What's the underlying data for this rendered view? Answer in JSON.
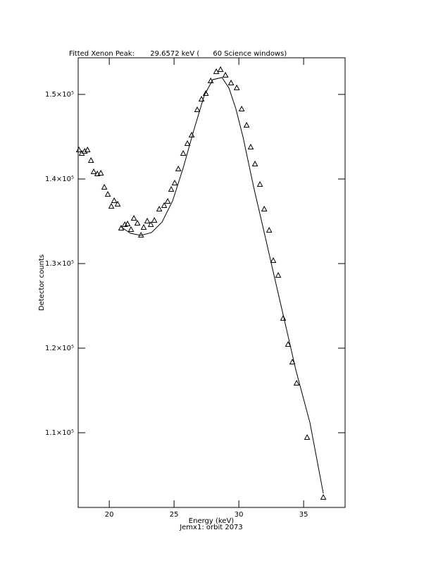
{
  "chart_data": {
    "type": "scatter",
    "title": "Fitted Xenon Peak:       29.6572 keV (      60 Science windows)",
    "x_label": "Energy (keV)",
    "subtitle": "Jemx1: orbit 2073",
    "y_label": "Detector counts",
    "xlim": [
      17.6,
      38.2
    ],
    "xticks": [
      20,
      25,
      30,
      35
    ],
    "ylim": [
      101170,
      154330
    ],
    "yticks": [
      {
        "value": 110000,
        "label": "1.1×10⁵"
      },
      {
        "value": 120000,
        "label": "1.2×10⁵"
      },
      {
        "value": 130000,
        "label": "1.3×10⁵"
      },
      {
        "value": 140000,
        "label": "1.4×10⁵"
      },
      {
        "value": 150000,
        "label": "1.5×10⁵"
      }
    ],
    "series": [
      {
        "marker": "triangle",
        "color": "#000000",
        "x": [
          17.66,
          17.88,
          18.1,
          18.32,
          18.59,
          18.8,
          19.08,
          19.35,
          19.62,
          19.89,
          20.16,
          20.38,
          20.65,
          20.92,
          21.2,
          21.41,
          21.68,
          21.9,
          22.17,
          22.45,
          22.66,
          22.93,
          23.21,
          23.48,
          23.86,
          24.24,
          24.51,
          24.78,
          25.05,
          25.33,
          25.71,
          26.03,
          26.36,
          26.79,
          27.12,
          27.45,
          27.83,
          28.26,
          28.59,
          28.97,
          29.4,
          29.84,
          30.22,
          30.6,
          30.92,
          31.25,
          31.63,
          31.96,
          32.34,
          32.66,
          33.04,
          33.42,
          33.8,
          34.13,
          34.46,
          35.27,
          36.52
        ],
        "values": [
          143417,
          143000,
          143250,
          143417,
          142167,
          140833,
          140583,
          140667,
          139000,
          138167,
          136750,
          137417,
          137000,
          134167,
          134583,
          134667,
          134000,
          135333,
          134750,
          133333,
          134250,
          135000,
          134583,
          135083,
          136417,
          136833,
          137333,
          138750,
          139500,
          141167,
          143000,
          144167,
          145167,
          148167,
          149417,
          150083,
          151583,
          152667,
          152917,
          152250,
          151333,
          150750,
          148250,
          146333,
          143750,
          141750,
          139333,
          136417,
          133917,
          130333,
          128583,
          123500,
          120417,
          118333,
          115833,
          109417,
          102333
        ]
      },
      {
        "marker": "line",
        "color": "#000000",
        "x": [
          20.92,
          21.63,
          22.45,
          23.26,
          24.08,
          24.89,
          25.71,
          26.52,
          27.34,
          27.99,
          28.7,
          29.24,
          29.78,
          30.33,
          31.14,
          31.96,
          32.77,
          33.59,
          34.4,
          35.49,
          36.52
        ],
        "values": [
          134333,
          133583,
          133333,
          133667,
          134917,
          137417,
          141333,
          145750,
          149917,
          151750,
          152000,
          150750,
          148250,
          144917,
          139083,
          133667,
          128250,
          122833,
          117417,
          111167,
          102833
        ]
      }
    ]
  }
}
